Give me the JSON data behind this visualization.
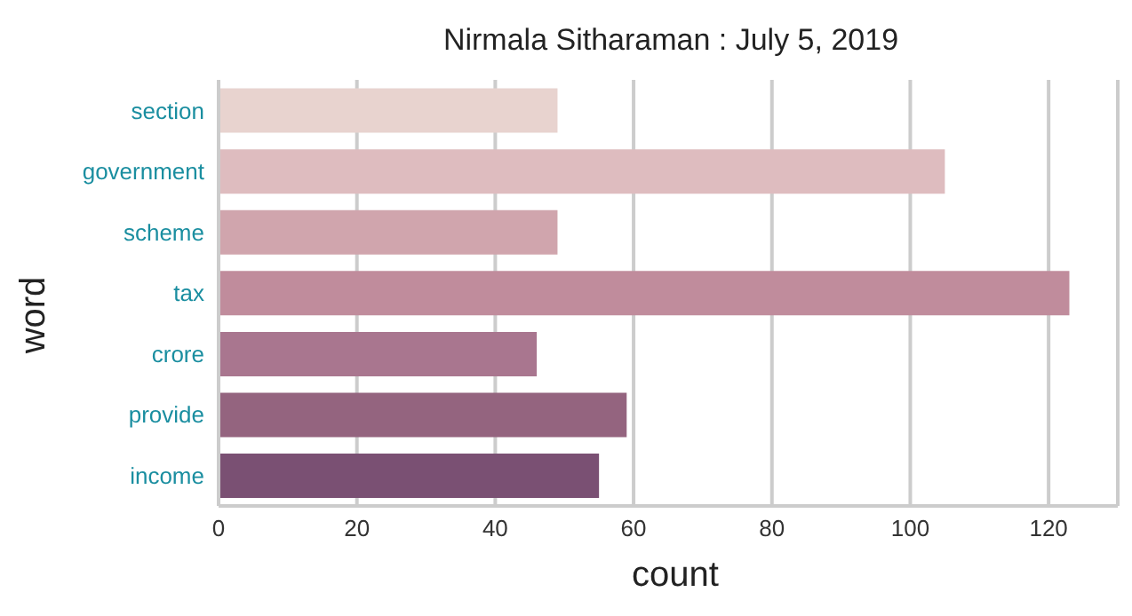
{
  "chart_data": {
    "type": "bar",
    "orientation": "horizontal",
    "title": "Nirmala Sitharaman : July 5, 2019",
    "xlabel": "count",
    "ylabel": "word",
    "categories": [
      "section",
      "government",
      "scheme",
      "tax",
      "crore",
      "provide",
      "income"
    ],
    "values": [
      49,
      105,
      49,
      123,
      46,
      59,
      55
    ],
    "colors": [
      "#e8d3cf",
      "#debcbf",
      "#d0a5ad",
      "#c08c9c",
      "#a9768f",
      "#94647f",
      "#7a5073"
    ],
    "xlim": [
      0,
      130
    ],
    "xticks": [
      0,
      20,
      40,
      60,
      80,
      100,
      120
    ],
    "grid": "x"
  }
}
